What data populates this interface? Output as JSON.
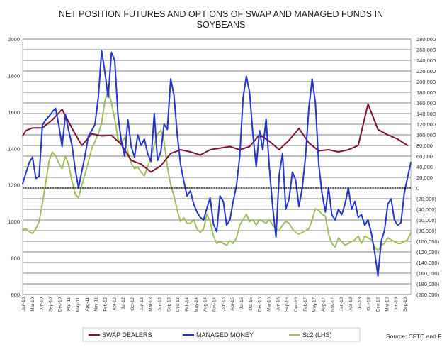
{
  "chart_data": {
    "type": "line",
    "title_lines": [
      "NET POSITION FUTURES AND OPTIONS OF SWAP AND MANAGED FUNDS IN",
      "SOYBEANS"
    ],
    "source": "Source: CFTC and FI",
    "left_axis": {
      "ylim": [
        600,
        2000
      ],
      "ticks": [
        600,
        800,
        1000,
        1200,
        1400,
        1600,
        1800,
        2000
      ],
      "tick_labels": [
        "600",
        "800",
        "1000",
        "1200",
        "1400",
        "1600",
        "1800",
        "2000"
      ]
    },
    "right_axis": {
      "ylim": [
        -200000,
        280000
      ],
      "ticks": [
        280000,
        260000,
        240000,
        220000,
        200000,
        180000,
        160000,
        140000,
        120000,
        100000,
        80000,
        60000,
        40000,
        20000,
        0,
        -20000,
        -40000,
        -60000,
        -80000,
        -100000,
        -120000,
        -140000,
        -160000,
        -180000,
        -200000
      ],
      "tick_labels": [
        "280,000",
        "260,000",
        "240,000",
        "220,000",
        "200,000",
        "180,000",
        "160,000",
        "140,000",
        "120,000",
        "100,000",
        "80,000",
        "60,000",
        "40,000",
        "20,000",
        "0",
        "(20,000)",
        "(40,000)",
        "(60,000)",
        "(80,000)",
        "(100,000)",
        "(120,000)",
        "(140,000)",
        "(160,000)",
        "(180,000)",
        "(200,000)"
      ]
    },
    "x_ticks": [
      "Jan-10",
      "Mar-10",
      "Jun-10",
      "Sep-10",
      "Dec-10",
      "Mar-11",
      "May-11",
      "Aug-11",
      "Nov-11",
      "Feb-12",
      "Apr-12",
      "Jul-12",
      "Oct-12",
      "Jan-13",
      "Mar-13",
      "Jun-13",
      "Sep-13",
      "Dec-13",
      "Feb-14",
      "May-14",
      "Aug-14",
      "Nov-14",
      "Jan-15",
      "Apr-15",
      "Jul-15",
      "Oct-15",
      "Dec-15",
      "Mar-16",
      "Jun-16",
      "Sep-16",
      "Dec-16",
      "Feb-17",
      "May-17",
      "Aug-17",
      "Nov-17",
      "Jan-18",
      "Apr-18",
      "Jul-18",
      "Oct-18",
      "Dec-18",
      "Mar-19",
      "Jun-19",
      "Sep-19"
    ],
    "grid": true,
    "legend": "bottom",
    "series": [
      {
        "name": "SWAP DEALERS",
        "axis": "right",
        "color": "#7b1530",
        "x": [
          0,
          1,
          3,
          6,
          9,
          12,
          15,
          18,
          21,
          24,
          27,
          30,
          33,
          36,
          39,
          42,
          45,
          48,
          51,
          54,
          57,
          60,
          63,
          66,
          69,
          72,
          75,
          78,
          81,
          84,
          87,
          90,
          93,
          96,
          99,
          102,
          105,
          108,
          111,
          114,
          117
        ],
        "values": [
          98000,
          108000,
          113000,
          113000,
          128000,
          148000,
          112000,
          80000,
          102000,
          98000,
          99000,
          82000,
          52000,
          45000,
          30000,
          42000,
          65000,
          72000,
          68000,
          62000,
          72000,
          75000,
          78000,
          72000,
          78000,
          100000,
          88000,
          72000,
          90000,
          112000,
          85000,
          70000,
          72000,
          68000,
          72000,
          80000,
          158000,
          110000,
          100000,
          92000,
          80000
        ]
      },
      {
        "name": "MANAGED MONEY",
        "axis": "right",
        "color": "#2434c8",
        "x": [
          0,
          1,
          2,
          3,
          4,
          5,
          6,
          7,
          8,
          9,
          10,
          11,
          12,
          13,
          14,
          15,
          16,
          17,
          18,
          19,
          20,
          21,
          22,
          23,
          24,
          25,
          26,
          27,
          28,
          29,
          30,
          31,
          32,
          33,
          34,
          35,
          36,
          37,
          38,
          39,
          40,
          41,
          42,
          43,
          44,
          45,
          46,
          47,
          48,
          49,
          50,
          51,
          52,
          53,
          54,
          55,
          56,
          57,
          58,
          59,
          60,
          61,
          62,
          63,
          64,
          65,
          66,
          67,
          68,
          69,
          70,
          71,
          72,
          73,
          74,
          75,
          76,
          77,
          78,
          79,
          80,
          81,
          82,
          83,
          84,
          85,
          86,
          87,
          88,
          89,
          90,
          91,
          92,
          93,
          94,
          95,
          96,
          97,
          98,
          99,
          100,
          101,
          102,
          103,
          104,
          105,
          106,
          107,
          108,
          109,
          110,
          111,
          112,
          113,
          114,
          115,
          116,
          117,
          118
        ],
        "values": [
          8000,
          28000,
          48000,
          58000,
          18000,
          22000,
          118000,
          128000,
          135000,
          143000,
          150000,
          118000,
          78000,
          138000,
          108000,
          80000,
          35000,
          0,
          32000,
          62000,
          98000,
          108000,
          120000,
          170000,
          258000,
          218000,
          170000,
          255000,
          240000,
          135000,
          88000,
          60000,
          128000,
          78000,
          58000,
          100000,
          80000,
          92000,
          65000,
          50000,
          140000,
          52000,
          68000,
          120000,
          110000,
          205000,
          175000,
          100000,
          45000,
          12000,
          -15000,
          -5000,
          -30000,
          -45000,
          -55000,
          -60000,
          -38000,
          -18000,
          -68000,
          -82000,
          -15000,
          -25000,
          -70000,
          -60000,
          -25000,
          5000,
          60000,
          170000,
          210000,
          180000,
          100000,
          40000,
          108000,
          72000,
          130000,
          38000,
          -35000,
          -92000,
          25000,
          65000,
          -40000,
          -20000,
          30000,
          15000,
          -35000,
          0,
          60000,
          150000,
          205000,
          160000,
          45000,
          -10000,
          -45000,
          0,
          -50000,
          -60000,
          -40000,
          -50000,
          -30000,
          0,
          -40000,
          -25000,
          -55000,
          -50000,
          -70000,
          -60000,
          -85000,
          -120000,
          -165000,
          -100000,
          -80000,
          -30000,
          -20000,
          -60000,
          -70000,
          -65000,
          -10000,
          20000,
          48000
        ]
      },
      {
        "name": "Sc2 (LHS)",
        "axis": "left",
        "color": "#9dbd5c",
        "x": [
          0,
          1,
          2,
          3,
          4,
          5,
          6,
          7,
          8,
          9,
          10,
          11,
          12,
          13,
          14,
          15,
          16,
          17,
          18,
          19,
          20,
          21,
          22,
          23,
          24,
          25,
          26,
          27,
          28,
          29,
          30,
          31,
          32,
          33,
          34,
          35,
          36,
          37,
          38,
          39,
          40,
          41,
          42,
          43,
          44,
          45,
          46,
          47,
          48,
          49,
          50,
          51,
          52,
          53,
          54,
          55,
          56,
          57,
          58,
          59,
          60,
          61,
          62,
          63,
          64,
          65,
          66,
          67,
          68,
          69,
          70,
          71,
          72,
          73,
          74,
          75,
          76,
          77,
          78,
          79,
          80,
          81,
          82,
          83,
          84,
          85,
          86,
          87,
          88,
          89,
          90,
          91,
          92,
          93,
          94,
          95,
          96,
          97,
          98,
          99,
          100,
          101,
          102,
          103,
          104,
          105,
          106,
          107,
          108,
          109,
          110,
          111,
          112,
          113,
          114,
          115,
          116,
          117,
          118
        ],
        "values": [
          955,
          960,
          945,
          935,
          960,
          1000,
          1100,
          1210,
          1330,
          1380,
          1360,
          1320,
          1290,
          1360,
          1310,
          1220,
          1150,
          1130,
          1200,
          1260,
          1330,
          1400,
          1440,
          1480,
          1540,
          1660,
          1720,
          1650,
          1560,
          1450,
          1430,
          1460,
          1380,
          1320,
          1290,
          1300,
          1270,
          1250,
          1300,
          1350,
          1420,
          1480,
          1500,
          1440,
          1300,
          1200,
          1140,
          1060,
          1000,
          1020,
          990,
          990,
          1010,
          960,
          940,
          960,
          1040,
          1000,
          920,
          880,
          890,
          880,
          870,
          895,
          880,
          910,
          980,
          1010,
          1040,
          1000,
          1010,
          980,
          1010,
          1000,
          990,
          1010,
          980,
          960,
          950,
          980,
          1000,
          990,
          960,
          940,
          930,
          940,
          950,
          960,
          1010,
          1070,
          1060,
          1040,
          1030,
          930,
          880,
          860,
          910,
          890,
          870,
          880,
          890,
          900,
          920,
          880,
          920,
          910,
          900,
          860,
          840,
          870,
          880,
          910,
          900,
          890,
          880,
          880,
          890,
          900,
          940
        ]
      }
    ],
    "x_count": 119
  }
}
